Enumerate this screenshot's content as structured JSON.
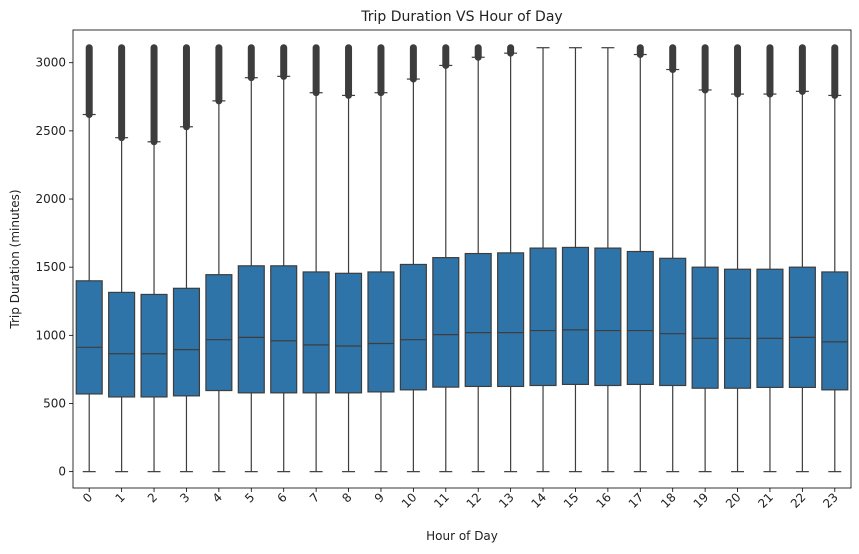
{
  "chart_data": {
    "type": "box",
    "title": "Trip Duration VS Hour of Day",
    "xlabel": "Hour of Day",
    "ylabel": "Trip Duration (minutes)",
    "categories": [
      "0",
      "1",
      "2",
      "3",
      "4",
      "5",
      "6",
      "7",
      "8",
      "9",
      "10",
      "11",
      "12",
      "13",
      "14",
      "15",
      "16",
      "17",
      "18",
      "19",
      "20",
      "21",
      "22",
      "23"
    ],
    "yticks": [
      0,
      500,
      1000,
      1500,
      2000,
      2500,
      3000
    ],
    "ylim": [
      -120,
      3240
    ],
    "xtick_rotation": 45,
    "grid": false,
    "legend": "none",
    "series_color": "#2e74a9",
    "line_color": "#3d3d3d",
    "boxes": [
      {
        "hour": "0",
        "whisker_low": 0,
        "q1": 570,
        "median": 912,
        "q3": 1400,
        "whisker_high": 2620,
        "outlier_min": 2620,
        "outlier_max": 3110
      },
      {
        "hour": "1",
        "whisker_low": 0,
        "q1": 548,
        "median": 865,
        "q3": 1315,
        "whisker_high": 2450,
        "outlier_min": 2450,
        "outlier_max": 3110
      },
      {
        "hour": "2",
        "whisker_low": 0,
        "q1": 548,
        "median": 865,
        "q3": 1300,
        "whisker_high": 2420,
        "outlier_min": 2420,
        "outlier_max": 3110
      },
      {
        "hour": "3",
        "whisker_low": 0,
        "q1": 556,
        "median": 895,
        "q3": 1345,
        "whisker_high": 2530,
        "outlier_min": 2530,
        "outlier_max": 3110
      },
      {
        "hour": "4",
        "whisker_low": 0,
        "q1": 595,
        "median": 968,
        "q3": 1445,
        "whisker_high": 2720,
        "outlier_min": 2720,
        "outlier_max": 3110
      },
      {
        "hour": "5",
        "whisker_low": 0,
        "q1": 578,
        "median": 985,
        "q3": 1510,
        "whisker_high": 2890,
        "outlier_min": 2890,
        "outlier_max": 3110
      },
      {
        "hour": "6",
        "whisker_low": 0,
        "q1": 578,
        "median": 960,
        "q3": 1510,
        "whisker_high": 2900,
        "outlier_min": 2900,
        "outlier_max": 3110
      },
      {
        "hour": "7",
        "whisker_low": 0,
        "q1": 578,
        "median": 930,
        "q3": 1465,
        "whisker_high": 2780,
        "outlier_min": 2780,
        "outlier_max": 3110
      },
      {
        "hour": "8",
        "whisker_low": 0,
        "q1": 578,
        "median": 922,
        "q3": 1455,
        "whisker_high": 2760,
        "outlier_min": 2760,
        "outlier_max": 3110
      },
      {
        "hour": "9",
        "whisker_low": 0,
        "q1": 585,
        "median": 940,
        "q3": 1465,
        "whisker_high": 2780,
        "outlier_min": 2780,
        "outlier_max": 3110
      },
      {
        "hour": "10",
        "whisker_low": 0,
        "q1": 600,
        "median": 968,
        "q3": 1520,
        "whisker_high": 2880,
        "outlier_min": 2880,
        "outlier_max": 3110
      },
      {
        "hour": "11",
        "whisker_low": 0,
        "q1": 620,
        "median": 1005,
        "q3": 1570,
        "whisker_high": 2980,
        "outlier_min": 2980,
        "outlier_max": 3110
      },
      {
        "hour": "12",
        "whisker_low": 0,
        "q1": 625,
        "median": 1020,
        "q3": 1600,
        "whisker_high": 3040,
        "outlier_min": 3040,
        "outlier_max": 3110
      },
      {
        "hour": "13",
        "whisker_low": 0,
        "q1": 625,
        "median": 1020,
        "q3": 1605,
        "whisker_high": 3070,
        "outlier_min": 3070,
        "outlier_max": 3110
      },
      {
        "hour": "14",
        "whisker_low": 0,
        "q1": 632,
        "median": 1035,
        "q3": 1640,
        "whisker_high": 3110,
        "outlier_min": null,
        "outlier_max": null
      },
      {
        "hour": "15",
        "whisker_low": 0,
        "q1": 640,
        "median": 1040,
        "q3": 1645,
        "whisker_high": 3110,
        "outlier_min": null,
        "outlier_max": null
      },
      {
        "hour": "16",
        "whisker_low": 0,
        "q1": 632,
        "median": 1035,
        "q3": 1640,
        "whisker_high": 3110,
        "outlier_min": null,
        "outlier_max": null
      },
      {
        "hour": "17",
        "whisker_low": 0,
        "q1": 640,
        "median": 1035,
        "q3": 1615,
        "whisker_high": 3060,
        "outlier_min": 3060,
        "outlier_max": 3110
      },
      {
        "hour": "18",
        "whisker_low": 0,
        "q1": 632,
        "median": 1012,
        "q3": 1565,
        "whisker_high": 2950,
        "outlier_min": 2950,
        "outlier_max": 3110
      },
      {
        "hour": "19",
        "whisker_low": 0,
        "q1": 612,
        "median": 978,
        "q3": 1500,
        "whisker_high": 2800,
        "outlier_min": 2800,
        "outlier_max": 3110
      },
      {
        "hour": "20",
        "whisker_low": 0,
        "q1": 612,
        "median": 978,
        "q3": 1485,
        "whisker_high": 2770,
        "outlier_min": 2770,
        "outlier_max": 3110
      },
      {
        "hour": "21",
        "whisker_low": 0,
        "q1": 618,
        "median": 978,
        "q3": 1485,
        "whisker_high": 2770,
        "outlier_min": 2770,
        "outlier_max": 3110
      },
      {
        "hour": "22",
        "whisker_low": 0,
        "q1": 618,
        "median": 985,
        "q3": 1500,
        "whisker_high": 2790,
        "outlier_min": 2790,
        "outlier_max": 3110
      },
      {
        "hour": "23",
        "whisker_low": 0,
        "q1": 600,
        "median": 952,
        "q3": 1465,
        "whisker_high": 2760,
        "outlier_min": 2760,
        "outlier_max": 3110
      }
    ]
  }
}
